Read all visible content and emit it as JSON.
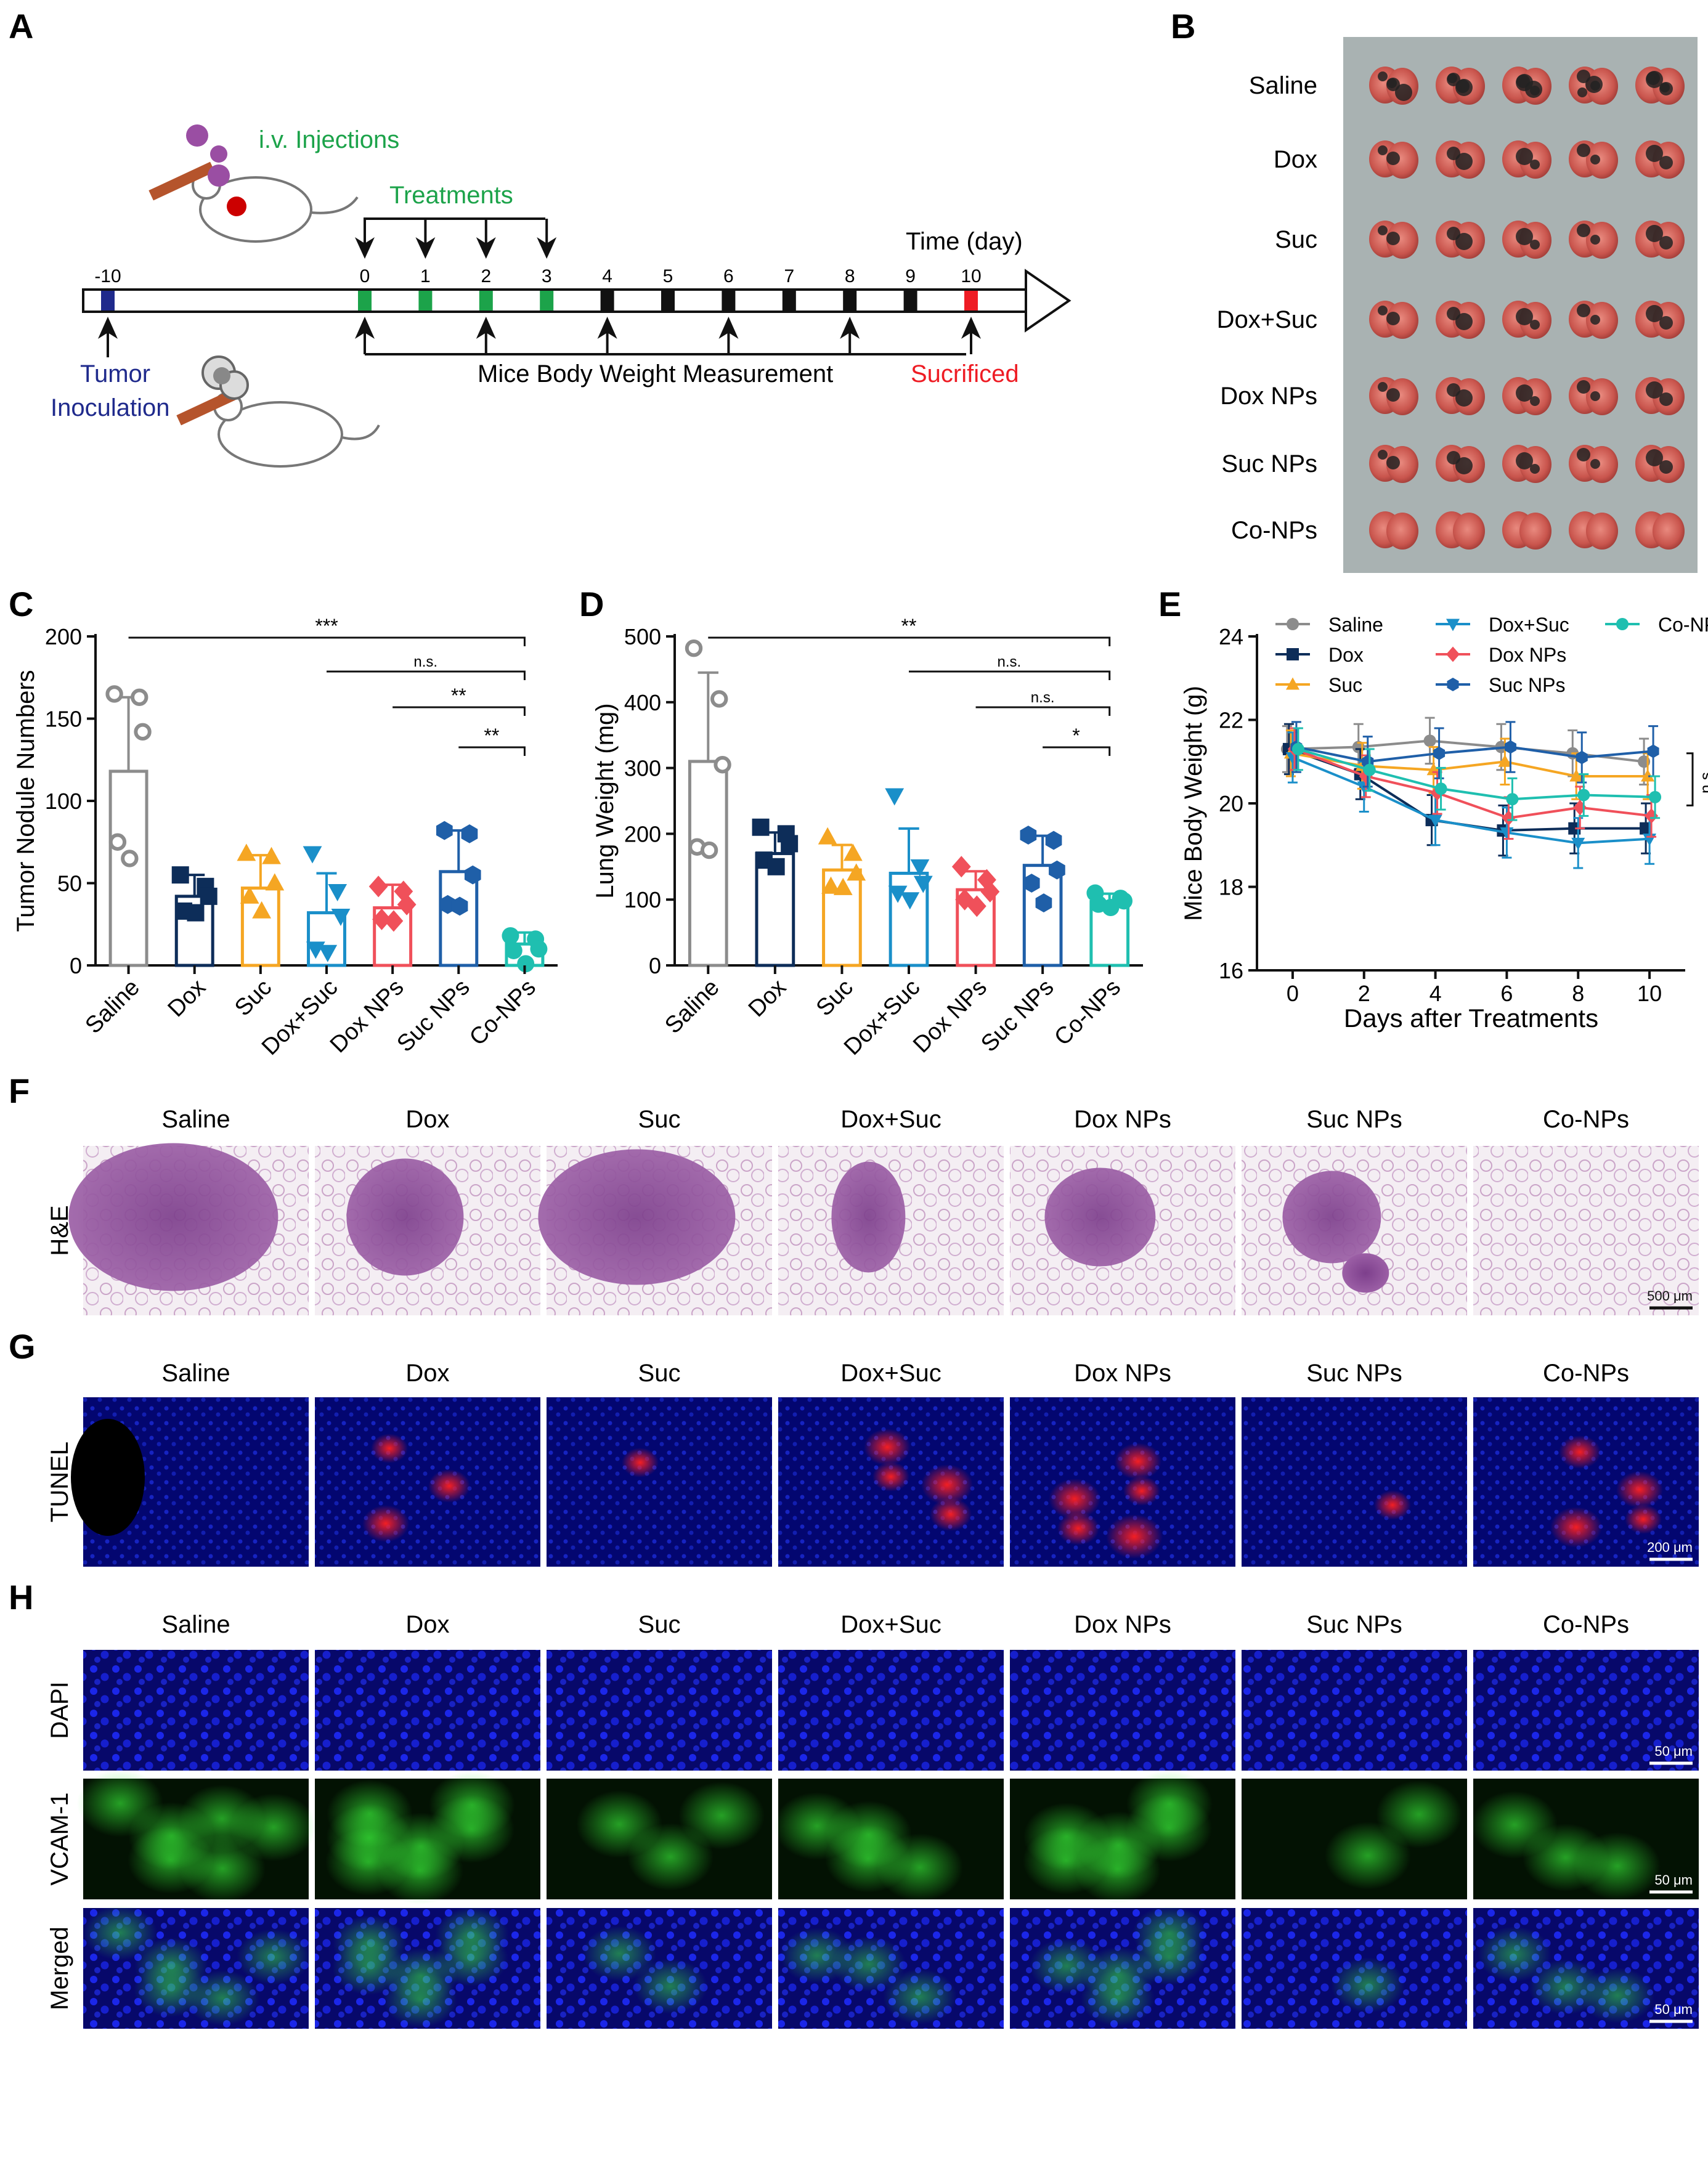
{
  "panel_labels": {
    "A": "A",
    "B": "B",
    "C": "C",
    "D": "D",
    "E": "E",
    "F": "F",
    "G": "G",
    "H": "H"
  },
  "groups": [
    "Saline",
    "Dox",
    "Suc",
    "Dox+Suc",
    "Dox NPs",
    "Suc NPs",
    "Co-NPs"
  ],
  "colors": {
    "Saline": "#8c8c8c",
    "Dox": "#0d2d59",
    "Suc": "#f5a623",
    "Dox+Suc": "#1a8fc9",
    "Dox NPs": "#f0505a",
    "Suc NPs": "#1f5fa8",
    "Co-NPs": "#1fbfb0",
    "treatment_green": "#1ca34a",
    "inoculation_blue": "#1f2a8c",
    "sacrifice_red": "#ee1c24"
  },
  "timeline": {
    "injection_label": "i.v. Injections",
    "treatments_label": "Treatments",
    "time_label": "Time (day)",
    "tumor_label_1": "Tumor",
    "tumor_label_2": "Inoculation",
    "weight_label": "Mice Body Weight Measurement",
    "sacrifice_label": "Sucrificed",
    "ticks": [
      "-10",
      "0",
      "1",
      "2",
      "3",
      "4",
      "5",
      "6",
      "7",
      "8",
      "9",
      "10"
    ]
  },
  "panel_b": {
    "rows": [
      "Saline",
      "Dox",
      "Suc",
      "Dox+Suc",
      "Dox NPs",
      "Suc NPs",
      "Co-NPs"
    ]
  },
  "chart_data": [
    {
      "id": "C",
      "type": "bar",
      "categories": [
        "Saline",
        "Dox",
        "Suc",
        "Dox+Suc",
        "Dox NPs",
        "Suc NPs",
        "Co-NPs"
      ],
      "values": [
        118,
        42,
        47,
        32,
        35,
        57,
        13
      ],
      "errors": [
        45,
        13,
        20,
        24,
        14,
        25,
        7
      ],
      "points": [
        [
          165,
          163,
          142,
          75,
          65
        ],
        [
          55,
          48,
          42,
          33,
          32
        ],
        [
          68,
          66,
          50,
          42,
          33
        ],
        [
          68,
          45,
          30,
          10,
          8
        ],
        [
          48,
          45,
          37,
          28,
          27
        ],
        [
          82,
          80,
          55,
          37,
          36
        ],
        [
          18,
          16,
          10,
          9,
          1
        ]
      ],
      "ylabel": "Tumor Nodule Numbers",
      "ylim": [
        0,
        200
      ],
      "yticks": [
        0,
        50,
        100,
        150,
        200
      ],
      "significance": [
        {
          "from": "Saline",
          "to": "Co-NPs",
          "label": "***"
        },
        {
          "from": "Dox+Suc",
          "to": "Co-NPs",
          "label": "n.s."
        },
        {
          "from": "Dox NPs",
          "to": "Co-NPs",
          "label": "**"
        },
        {
          "from": "Suc NPs",
          "to": "Co-NPs",
          "label": "**"
        }
      ]
    },
    {
      "id": "D",
      "type": "bar",
      "categories": [
        "Saline",
        "Dox",
        "Suc",
        "Dox+Suc",
        "Dox NPs",
        "Suc NPs",
        "Co-NPs"
      ],
      "values": [
        310,
        170,
        145,
        140,
        115,
        152,
        97
      ],
      "errors": [
        135,
        32,
        38,
        68,
        28,
        45,
        12
      ],
      "points": [
        [
          482,
          405,
          305,
          180,
          175
        ],
        [
          210,
          200,
          185,
          160,
          150
        ],
        [
          195,
          170,
          140,
          120,
          118
        ],
        [
          258,
          150,
          125,
          110,
          100
        ],
        [
          150,
          130,
          112,
          100,
          90
        ],
        [
          198,
          190,
          145,
          125,
          95
        ],
        [
          110,
          102,
          98,
          93,
          88
        ]
      ],
      "ylabel": "Lung Weight (mg)",
      "ylim": [
        0,
        500
      ],
      "yticks": [
        0,
        100,
        200,
        300,
        400,
        500
      ],
      "significance": [
        {
          "from": "Saline",
          "to": "Co-NPs",
          "label": "**"
        },
        {
          "from": "Dox+Suc",
          "to": "Co-NPs",
          "label": "n.s."
        },
        {
          "from": "Dox NPs",
          "to": "Co-NPs",
          "label": "n.s."
        },
        {
          "from": "Suc NPs",
          "to": "Co-NPs",
          "label": "*"
        }
      ]
    },
    {
      "id": "E",
      "type": "line",
      "x": [
        0,
        2,
        4,
        6,
        8,
        10
      ],
      "xlabel": "Days after Treatments",
      "ylabel": "Mice Body Weight (g)",
      "xlim": [
        -1,
        11
      ],
      "ylim": [
        16,
        24
      ],
      "xticks": [
        0,
        2,
        4,
        6,
        8,
        10
      ],
      "yticks": [
        16,
        18,
        20,
        22,
        24
      ],
      "annotation": "n.s.",
      "series": [
        {
          "name": "Saline",
          "marker": "circle",
          "values": [
            21.3,
            21.35,
            21.5,
            21.35,
            21.2,
            21.0
          ],
          "error": 0.55
        },
        {
          "name": "Dox",
          "marker": "square",
          "values": [
            21.3,
            20.7,
            19.6,
            19.35,
            19.4,
            19.4
          ],
          "error": 0.6
        },
        {
          "name": "Suc",
          "marker": "triangle",
          "values": [
            21.2,
            20.9,
            20.8,
            21.0,
            20.65,
            20.65
          ],
          "error": 0.55
        },
        {
          "name": "Dox+Suc",
          "marker": "tri-down",
          "values": [
            21.1,
            20.4,
            19.6,
            19.3,
            19.05,
            19.15
          ],
          "error": 0.6
        },
        {
          "name": "Dox NPs",
          "marker": "diamond",
          "values": [
            21.3,
            20.65,
            20.25,
            19.65,
            19.9,
            19.7
          ],
          "error": 0.5
        },
        {
          "name": "Suc NPs",
          "marker": "hexagon",
          "values": [
            21.35,
            21.0,
            21.2,
            21.35,
            21.1,
            21.25
          ],
          "error": 0.6
        },
        {
          "name": "Co-NPs",
          "marker": "circle",
          "values": [
            21.3,
            20.8,
            20.35,
            20.1,
            20.2,
            20.15
          ],
          "error": 0.5
        }
      ]
    }
  ],
  "micro": {
    "row_labels": {
      "he": "H&E",
      "tunel": "TUNEL",
      "dapi": "DAPI",
      "vcam": "VCAM-1",
      "merged": "Merged"
    },
    "scale_bars": {
      "he": "500 μm",
      "tunel": "200 μm",
      "dapi": "50 μm",
      "vcam": "50 μm",
      "merged": "50 μm"
    }
  }
}
